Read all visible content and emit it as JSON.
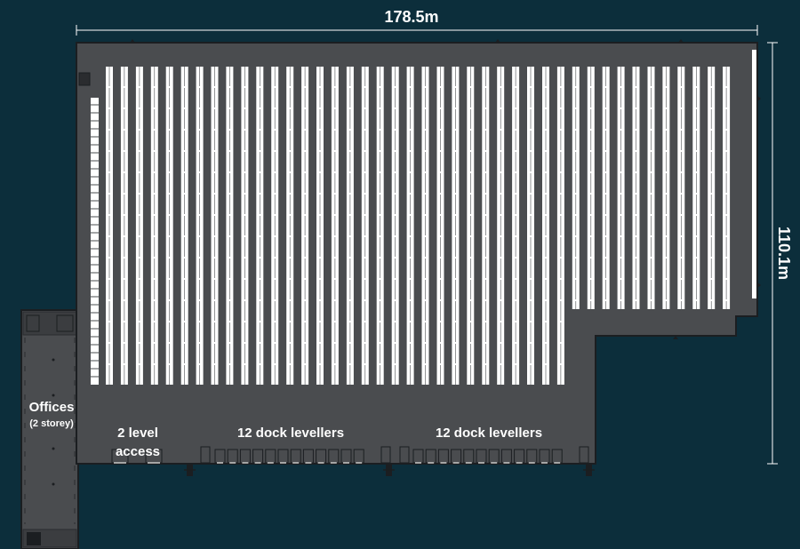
{
  "dimensions": {
    "width_label": "178.5m",
    "height_label": "110.1m"
  },
  "areas": {
    "offices_label": "Offices",
    "offices_sub": "(2 storey)",
    "level_access_line1": "2 level",
    "level_access_line2": "access",
    "dock_west_label": "12 dock levellers",
    "dock_east_label": "12 dock levellers"
  },
  "colors": {
    "background": "#0c2e3b",
    "building_fill": "#4a4c4f",
    "building_outline": "#1b1e21",
    "racking": "#ffffff",
    "dimension_line": "#ffffff"
  }
}
